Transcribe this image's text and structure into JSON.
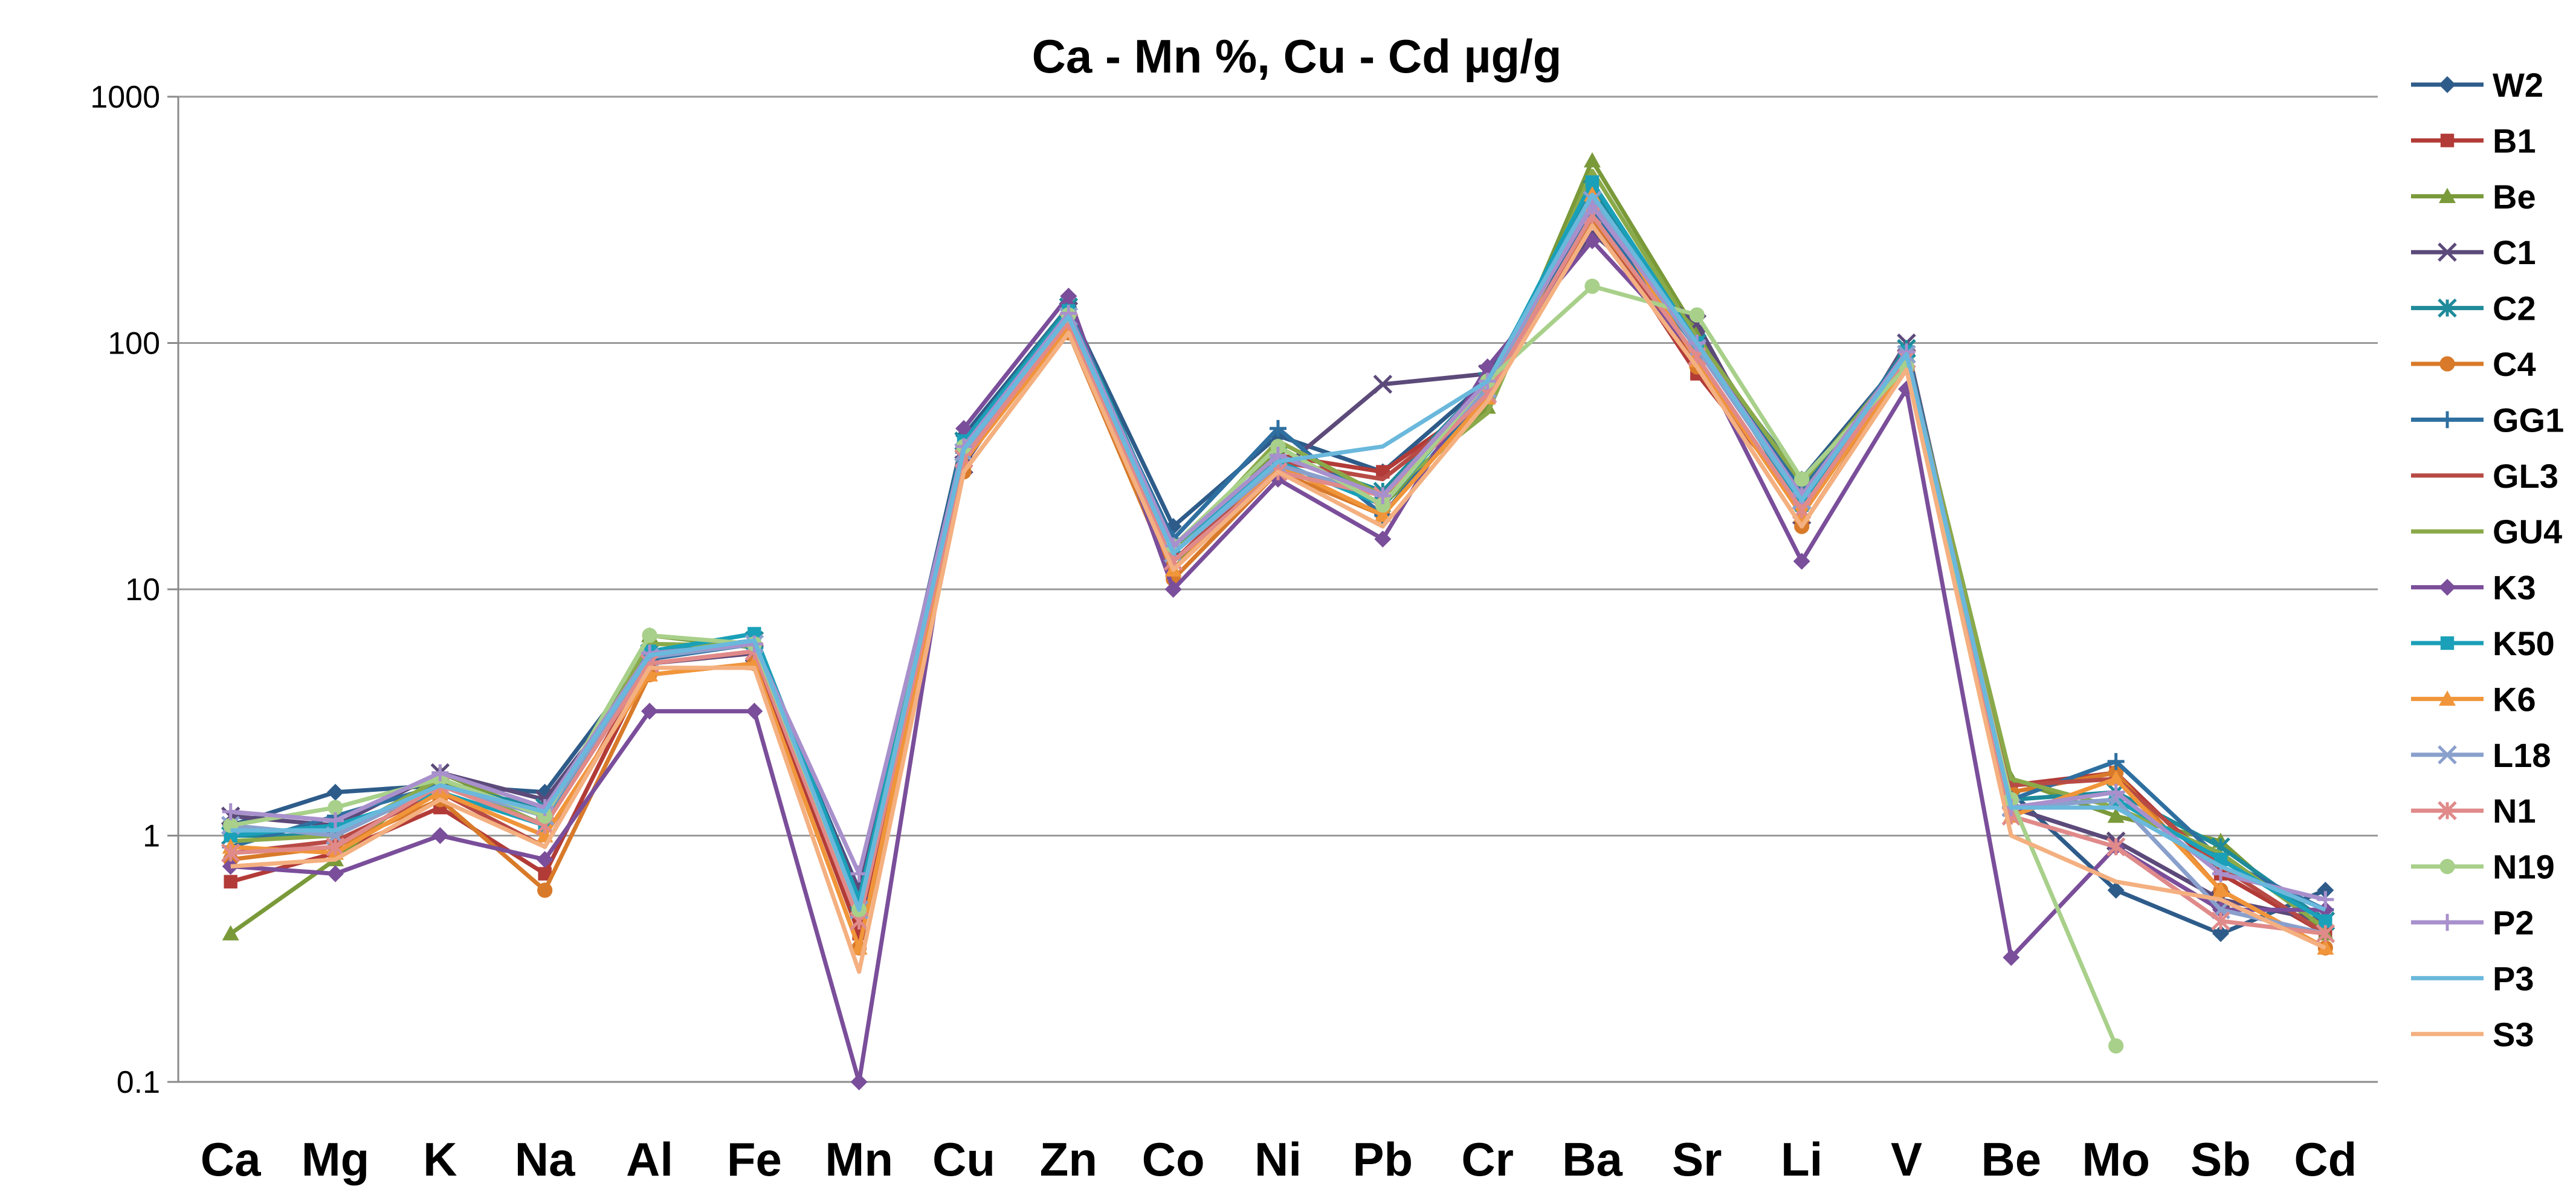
{
  "chart_data": {
    "type": "line",
    "title": "Ca - Mn %, Cu - Cd µg/g",
    "xlabel": "",
    "ylabel": "",
    "y_scale": "log",
    "ylim": [
      0.1,
      1000
    ],
    "y_ticks": [
      "0.1",
      "1",
      "10",
      "100",
      "1000"
    ],
    "grid": "horizontal",
    "legend_position": "right",
    "categories": [
      "Ca",
      "Mg",
      "K",
      "Na",
      "Al",
      "Fe",
      "Mn",
      "Cu",
      "Zn",
      "Co",
      "Ni",
      "Pb",
      "Cr",
      "Ba",
      "Sr",
      "Li",
      "V",
      "Be",
      "Mo",
      "Sb",
      "Cd"
    ],
    "series": [
      {
        "name": "W2",
        "color": "#2E5C8A",
        "marker": "diamond",
        "values": [
          1.1,
          1.5,
          1.6,
          1.5,
          5.5,
          6.0,
          0.6,
          42,
          140,
          18,
          42,
          30,
          70,
          330,
          100,
          28,
          90,
          1.5,
          0.6,
          0.4,
          0.6
        ]
      },
      {
        "name": "B1",
        "color": "#B23B37",
        "marker": "square",
        "values": [
          0.65,
          0.85,
          1.3,
          0.7,
          5.0,
          5.5,
          0.4,
          38,
          130,
          14,
          35,
          30,
          60,
          330,
          75,
          22,
          85,
          1.6,
          1.8,
          0.7,
          0.4
        ]
      },
      {
        "name": "Be",
        "color": "#7A9A3A",
        "marker": "triangle",
        "values": [
          0.4,
          0.8,
          1.8,
          1.2,
          6.5,
          5.8,
          0.5,
          35,
          125,
          12,
          38,
          22,
          55,
          550,
          110,
          25,
          90,
          1.7,
          1.2,
          0.95,
          0.4
        ]
      },
      {
        "name": "C1",
        "color": "#5C4A7A",
        "marker": "x",
        "values": [
          1.2,
          1.1,
          1.8,
          1.4,
          5.0,
          5.5,
          0.6,
          32,
          135,
          13,
          30,
          68,
          75,
          280,
          120,
          20,
          100,
          1.3,
          0.95,
          0.55,
          0.45
        ]
      },
      {
        "name": "C2",
        "color": "#1E8A9A",
        "marker": "star",
        "values": [
          1.0,
          1.0,
          1.6,
          1.3,
          5.5,
          6.2,
          0.55,
          40,
          140,
          15,
          35,
          25,
          70,
          420,
          100,
          24,
          95,
          1.4,
          1.5,
          0.9,
          0.45
        ]
      },
      {
        "name": "C4",
        "color": "#D87A2A",
        "marker": "circle",
        "values": [
          0.8,
          0.9,
          1.4,
          0.6,
          4.5,
          5.0,
          0.35,
          30,
          110,
          11,
          30,
          20,
          62,
          320,
          80,
          18,
          80,
          1.5,
          1.8,
          0.6,
          0.35
        ]
      },
      {
        "name": "GG1",
        "color": "#2E6FA0",
        "marker": "plus",
        "values": [
          0.9,
          1.2,
          1.6,
          1.2,
          5.2,
          6.0,
          0.5,
          36,
          125,
          16,
          45,
          20,
          65,
          350,
          95,
          26,
          92,
          1.4,
          2.0,
          0.8,
          0.5
        ]
      },
      {
        "name": "GL3",
        "color": "#B84A45",
        "marker": "none",
        "values": [
          0.85,
          0.95,
          1.5,
          0.9,
          5.0,
          5.6,
          0.45,
          34,
          120,
          13,
          33,
          28,
          60,
          300,
          85,
          21,
          86,
          1.6,
          1.7,
          0.75,
          0.4
        ]
      },
      {
        "name": "GU4",
        "color": "#8AAA4A",
        "marker": "none",
        "values": [
          0.95,
          1.0,
          1.7,
          1.1,
          6.0,
          5.9,
          0.5,
          37,
          130,
          14,
          40,
          24,
          52,
          500,
          105,
          27,
          88,
          1.7,
          1.3,
          0.85,
          0.42
        ]
      },
      {
        "name": "K3",
        "color": "#7A4E9A",
        "marker": "diamond",
        "values": [
          0.75,
          0.7,
          1.0,
          0.8,
          3.2,
          3.2,
          0.1,
          45,
          155,
          10,
          28,
          16,
          80,
          260,
          90,
          13,
          65,
          0.32,
          0.9,
          0.5,
          0.5
        ]
      },
      {
        "name": "K50",
        "color": "#1AA0B8",
        "marker": "square",
        "values": [
          1.0,
          1.1,
          1.5,
          1.1,
          5.6,
          6.6,
          0.55,
          40,
          135,
          15,
          33,
          22,
          68,
          450,
          100,
          22,
          92,
          1.3,
          1.4,
          0.8,
          0.45
        ]
      },
      {
        "name": "K6",
        "color": "#F0953A",
        "marker": "triangle",
        "values": [
          0.9,
          0.85,
          1.5,
          1.0,
          4.5,
          5.0,
          0.35,
          33,
          115,
          12,
          32,
          20,
          60,
          400,
          85,
          20,
          82,
          1.2,
          1.7,
          0.6,
          0.35
        ]
      },
      {
        "name": "L18",
        "color": "#8AA0CC",
        "marker": "x",
        "values": [
          1.1,
          1.0,
          1.6,
          1.2,
          5.3,
          6.0,
          0.5,
          36,
          128,
          14,
          32,
          24,
          65,
          380,
          95,
          23,
          90,
          1.3,
          1.4,
          0.5,
          0.4
        ]
      },
      {
        "name": "N1",
        "color": "#E08A8A",
        "marker": "star",
        "values": [
          0.85,
          0.9,
          1.6,
          1.1,
          5.0,
          5.6,
          0.45,
          34,
          122,
          13,
          30,
          24,
          62,
          330,
          88,
          21,
          86,
          1.2,
          0.9,
          0.45,
          0.4
        ]
      },
      {
        "name": "N19",
        "color": "#A8D08A",
        "marker": "circle",
        "values": [
          1.1,
          1.3,
          1.7,
          1.2,
          6.5,
          6.0,
          0.5,
          38,
          130,
          15,
          38,
          22,
          70,
          170,
          130,
          28,
          80,
          1.4,
          0.14,
          null,
          null
        ]
      },
      {
        "name": "P2",
        "color": "#A890CC",
        "marker": "plus",
        "values": [
          1.25,
          1.15,
          1.8,
          1.3,
          5.5,
          6.0,
          0.7,
          38,
          132,
          15,
          35,
          24,
          70,
          360,
          100,
          24,
          92,
          1.3,
          1.5,
          0.7,
          0.55
        ]
      },
      {
        "name": "P3",
        "color": "#6AB8DC",
        "marker": "none",
        "values": [
          1.05,
          1.05,
          1.6,
          1.25,
          5.4,
          6.2,
          0.5,
          37,
          128,
          14,
          33,
          38,
          70,
          400,
          100,
          23,
          90,
          1.3,
          1.3,
          0.75,
          0.5
        ]
      },
      {
        "name": "S3",
        "color": "#F4B080",
        "marker": "none",
        "values": [
          0.75,
          0.8,
          1.4,
          0.9,
          4.8,
          4.8,
          0.28,
          30,
          110,
          12,
          30,
          18,
          58,
          300,
          80,
          18,
          78,
          1.0,
          0.65,
          0.55,
          0.35
        ]
      }
    ]
  }
}
